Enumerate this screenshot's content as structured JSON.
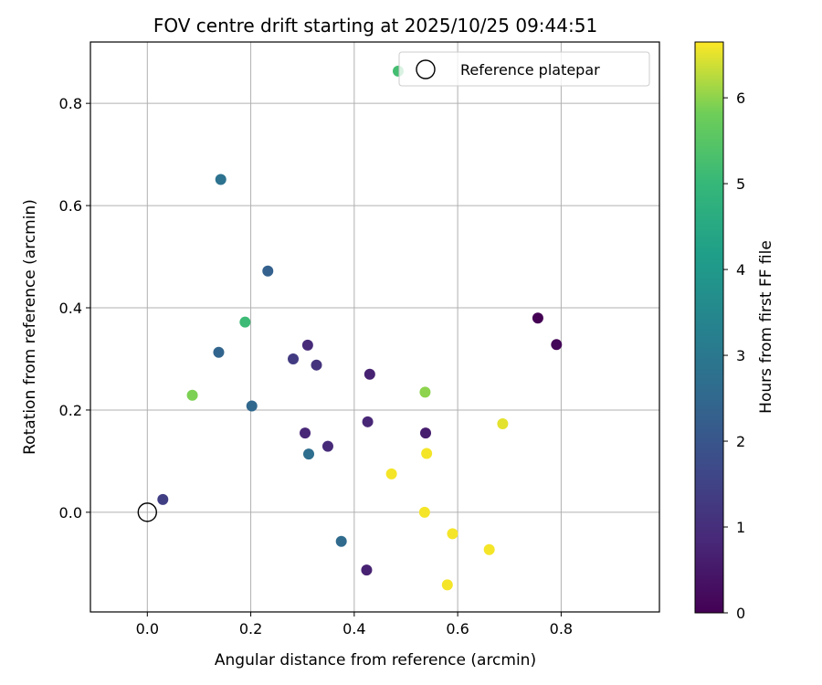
{
  "chart_data": {
    "type": "scatter",
    "title": "FOV centre drift starting at 2025/10/25 09:44:51",
    "xlabel": "Angular distance from reference (arcmin)",
    "ylabel": "Rotation from reference (arcmin)",
    "xlim": [
      -0.11,
      0.99
    ],
    "ylim": [
      -0.195,
      0.92
    ],
    "x_ticks": [
      0.0,
      0.2,
      0.4,
      0.6,
      0.8
    ],
    "x_tick_labels": [
      "0.0",
      "0.2",
      "0.4",
      "0.6",
      "0.8"
    ],
    "y_ticks": [
      0.0,
      0.2,
      0.4,
      0.6,
      0.8
    ],
    "y_tick_labels": [
      "0.0",
      "0.2",
      "0.4",
      "0.6",
      "0.8"
    ],
    "grid": true,
    "colormap": "viridis",
    "colorbar": {
      "label": "Hours from first FF file",
      "range": [
        0,
        6.65
      ],
      "ticks": [
        0,
        1,
        2,
        3,
        4,
        5,
        6
      ],
      "tick_labels": [
        "0",
        "1",
        "2",
        "3",
        "4",
        "5",
        "6"
      ]
    },
    "legend": {
      "placement": "top-right",
      "entries": [
        "Reference platepar"
      ]
    },
    "reference_point": {
      "x": 0.0,
      "y": 0.0
    },
    "points": [
      {
        "x": 0.755,
        "y": 0.38,
        "c": 0.0
      },
      {
        "x": 0.791,
        "y": 0.328,
        "c": 0.1
      },
      {
        "x": 0.538,
        "y": 0.155,
        "c": 0.6
      },
      {
        "x": 0.424,
        "y": -0.113,
        "c": 0.7
      },
      {
        "x": 0.43,
        "y": 0.27,
        "c": 0.7
      },
      {
        "x": 0.305,
        "y": 0.155,
        "c": 0.8
      },
      {
        "x": 0.426,
        "y": 0.177,
        "c": 0.8
      },
      {
        "x": 0.349,
        "y": 0.129,
        "c": 0.9
      },
      {
        "x": 0.31,
        "y": 0.327,
        "c": 0.9
      },
      {
        "x": 0.327,
        "y": 0.288,
        "c": 1.1
      },
      {
        "x": 0.282,
        "y": 0.3,
        "c": 1.3
      },
      {
        "x": 0.03,
        "y": 0.025,
        "c": 1.4
      },
      {
        "x": 0.233,
        "y": 0.472,
        "c": 2.3
      },
      {
        "x": 0.138,
        "y": 0.313,
        "c": 2.4
      },
      {
        "x": 0.202,
        "y": 0.208,
        "c": 2.5
      },
      {
        "x": 0.375,
        "y": -0.057,
        "c": 2.6
      },
      {
        "x": 0.312,
        "y": 0.114,
        "c": 2.7
      },
      {
        "x": 0.142,
        "y": 0.651,
        "c": 2.8
      },
      {
        "x": 0.189,
        "y": 0.372,
        "c": 5.1
      },
      {
        "x": 0.485,
        "y": 0.863,
        "c": 5.2
      },
      {
        "x": 0.087,
        "y": 0.229,
        "c": 5.9
      },
      {
        "x": 0.537,
        "y": 0.235,
        "c": 6.0
      },
      {
        "x": 0.687,
        "y": 0.173,
        "c": 6.5
      },
      {
        "x": 0.54,
        "y": 0.115,
        "c": 6.6
      },
      {
        "x": 0.472,
        "y": 0.075,
        "c": 6.6
      },
      {
        "x": 0.536,
        "y": 0.0,
        "c": 6.6
      },
      {
        "x": 0.59,
        "y": -0.042,
        "c": 6.6
      },
      {
        "x": 0.661,
        "y": -0.073,
        "c": 6.6
      },
      {
        "x": 0.58,
        "y": -0.142,
        "c": 6.6
      }
    ]
  }
}
